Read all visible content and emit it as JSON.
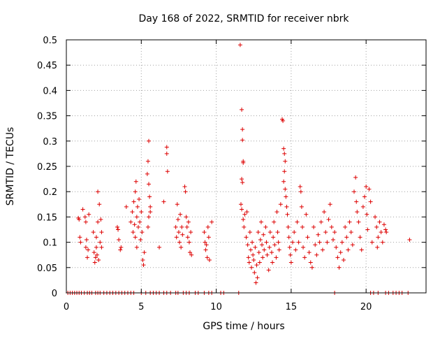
{
  "chart_data": {
    "type": "scatter",
    "title": "Day 168 of 2022, SRMTID for receiver nbrk",
    "xlabel": "GPS time / hours",
    "ylabel": "SRMTID / TECUs",
    "xlim": [
      0,
      24
    ],
    "ylim": [
      0,
      0.5
    ],
    "grid": true,
    "marker": "+",
    "color": "#dd0000",
    "xticks": [
      {
        "value": 0,
        "label": "0"
      },
      {
        "value": 5,
        "label": "5"
      },
      {
        "value": 10,
        "label": "10"
      },
      {
        "value": 15,
        "label": "15"
      },
      {
        "value": 20,
        "label": "20"
      }
    ],
    "yticks": [
      {
        "value": 0,
        "label": "0"
      },
      {
        "value": 0.05,
        "label": "0.05"
      },
      {
        "value": 0.1,
        "label": "0.1"
      },
      {
        "value": 0.15,
        "label": "0.15"
      },
      {
        "value": 0.2,
        "label": "0.2"
      },
      {
        "value": 0.25,
        "label": "0.25"
      },
      {
        "value": 0.3,
        "label": "0.3"
      },
      {
        "value": 0.35,
        "label": "0.35"
      },
      {
        "value": 0.4,
        "label": "0.4"
      },
      {
        "value": 0.45,
        "label": "0.45"
      },
      {
        "value": 0.5,
        "label": "0.5"
      }
    ],
    "points": [
      {
        "x": 0.8,
        "y": 0.148
      },
      {
        "x": 0.85,
        "y": 0.145
      },
      {
        "x": 0.9,
        "y": 0.11
      },
      {
        "x": 0.95,
        "y": 0.1
      },
      {
        "x": 1.1,
        "y": 0.165
      },
      {
        "x": 1.25,
        "y": 0.15
      },
      {
        "x": 1.3,
        "y": 0.14
      },
      {
        "x": 1.3,
        "y": 0.09
      },
      {
        "x": 1.35,
        "y": 0.105
      },
      {
        "x": 1.4,
        "y": 0.07
      },
      {
        "x": 1.45,
        "y": 0.085
      },
      {
        "x": 1.5,
        "y": 0.155
      },
      {
        "x": 1.8,
        "y": 0.12
      },
      {
        "x": 1.85,
        "y": 0.08
      },
      {
        "x": 1.9,
        "y": 0.06
      },
      {
        "x": 1.95,
        "y": 0.07
      },
      {
        "x": 2.0,
        "y": 0.09
      },
      {
        "x": 2.0,
        "y": 0.11
      },
      {
        "x": 2.05,
        "y": 0.075
      },
      {
        "x": 2.1,
        "y": 0.2
      },
      {
        "x": 2.1,
        "y": 0.14
      },
      {
        "x": 2.15,
        "y": 0.065
      },
      {
        "x": 2.2,
        "y": 0.175
      },
      {
        "x": 2.25,
        "y": 0.1
      },
      {
        "x": 2.3,
        "y": 0.145
      },
      {
        "x": 2.35,
        "y": 0.12
      },
      {
        "x": 2.35,
        "y": 0.09
      },
      {
        "x": 3.4,
        "y": 0.13
      },
      {
        "x": 3.45,
        "y": 0.125
      },
      {
        "x": 3.5,
        "y": 0.105
      },
      {
        "x": 3.6,
        "y": 0.085
      },
      {
        "x": 3.65,
        "y": 0.09
      },
      {
        "x": 4.0,
        "y": 0.17
      },
      {
        "x": 4.3,
        "y": 0.14
      },
      {
        "x": 4.4,
        "y": 0.16
      },
      {
        "x": 4.45,
        "y": 0.12
      },
      {
        "x": 4.5,
        "y": 0.18
      },
      {
        "x": 4.55,
        "y": 0.135
      },
      {
        "x": 4.6,
        "y": 0.2
      },
      {
        "x": 4.6,
        "y": 0.11
      },
      {
        "x": 4.65,
        "y": 0.22
      },
      {
        "x": 4.7,
        "y": 0.15
      },
      {
        "x": 4.7,
        "y": 0.09
      },
      {
        "x": 4.75,
        "y": 0.17
      },
      {
        "x": 4.8,
        "y": 0.13
      },
      {
        "x": 4.85,
        "y": 0.185
      },
      {
        "x": 4.9,
        "y": 0.14
      },
      {
        "x": 4.95,
        "y": 0.105
      },
      {
        "x": 5.0,
        "y": 0.16
      },
      {
        "x": 5.05,
        "y": 0.12
      },
      {
        "x": 5.1,
        "y": 0.065
      },
      {
        "x": 5.15,
        "y": 0.055
      },
      {
        "x": 5.2,
        "y": 0.08
      },
      {
        "x": 5.5,
        "y": 0.3
      },
      {
        "x": 5.45,
        "y": 0.26
      },
      {
        "x": 5.4,
        "y": 0.235
      },
      {
        "x": 5.5,
        "y": 0.215
      },
      {
        "x": 5.55,
        "y": 0.19
      },
      {
        "x": 5.6,
        "y": 0.17
      },
      {
        "x": 5.5,
        "y": 0.15
      },
      {
        "x": 5.45,
        "y": 0.13
      },
      {
        "x": 5.6,
        "y": 0.16
      },
      {
        "x": 6.2,
        "y": 0.09
      },
      {
        "x": 6.5,
        "y": 0.18
      },
      {
        "x": 6.7,
        "y": 0.288
      },
      {
        "x": 6.7,
        "y": 0.275
      },
      {
        "x": 6.75,
        "y": 0.24
      },
      {
        "x": 7.3,
        "y": 0.13
      },
      {
        "x": 7.35,
        "y": 0.11
      },
      {
        "x": 7.4,
        "y": 0.175
      },
      {
        "x": 7.45,
        "y": 0.145
      },
      {
        "x": 7.5,
        "y": 0.12
      },
      {
        "x": 7.55,
        "y": 0.1
      },
      {
        "x": 7.6,
        "y": 0.155
      },
      {
        "x": 7.65,
        "y": 0.09
      },
      {
        "x": 7.7,
        "y": 0.13
      },
      {
        "x": 7.75,
        "y": 0.115
      },
      {
        "x": 7.9,
        "y": 0.21
      },
      {
        "x": 7.95,
        "y": 0.2
      },
      {
        "x": 8.0,
        "y": 0.15
      },
      {
        "x": 8.05,
        "y": 0.13
      },
      {
        "x": 8.1,
        "y": 0.11
      },
      {
        "x": 8.15,
        "y": 0.14
      },
      {
        "x": 8.2,
        "y": 0.1
      },
      {
        "x": 8.25,
        "y": 0.08
      },
      {
        "x": 8.3,
        "y": 0.12
      },
      {
        "x": 8.35,
        "y": 0.075
      },
      {
        "x": 9.2,
        "y": 0.12
      },
      {
        "x": 9.25,
        "y": 0.1
      },
      {
        "x": 9.3,
        "y": 0.085
      },
      {
        "x": 9.35,
        "y": 0.095
      },
      {
        "x": 9.4,
        "y": 0.07
      },
      {
        "x": 9.45,
        "y": 0.13
      },
      {
        "x": 9.5,
        "y": 0.11
      },
      {
        "x": 9.55,
        "y": 0.065
      },
      {
        "x": 9.7,
        "y": 0.14
      },
      {
        "x": 11.6,
        "y": 0.49
      },
      {
        "x": 11.7,
        "y": 0.362
      },
      {
        "x": 11.75,
        "y": 0.323
      },
      {
        "x": 11.75,
        "y": 0.302
      },
      {
        "x": 11.8,
        "y": 0.26
      },
      {
        "x": 11.8,
        "y": 0.257
      },
      {
        "x": 11.7,
        "y": 0.225
      },
      {
        "x": 11.75,
        "y": 0.218
      },
      {
        "x": 11.65,
        "y": 0.175
      },
      {
        "x": 11.7,
        "y": 0.165
      },
      {
        "x": 11.8,
        "y": 0.145
      },
      {
        "x": 11.85,
        "y": 0.13
      },
      {
        "x": 11.9,
        "y": 0.155
      },
      {
        "x": 12.0,
        "y": 0.11
      },
      {
        "x": 12.05,
        "y": 0.16
      },
      {
        "x": 12.1,
        "y": 0.095
      },
      {
        "x": 12.15,
        "y": 0.07
      },
      {
        "x": 12.2,
        "y": 0.06
      },
      {
        "x": 12.25,
        "y": 0.12
      },
      {
        "x": 12.3,
        "y": 0.085
      },
      {
        "x": 12.35,
        "y": 0.05
      },
      {
        "x": 12.4,
        "y": 0.1
      },
      {
        "x": 12.45,
        "y": 0.075
      },
      {
        "x": 12.5,
        "y": 0.065
      },
      {
        "x": 12.55,
        "y": 0.04
      },
      {
        "x": 12.6,
        "y": 0.09
      },
      {
        "x": 12.65,
        "y": 0.02
      },
      {
        "x": 12.7,
        "y": 0.055
      },
      {
        "x": 12.75,
        "y": 0.03
      },
      {
        "x": 12.8,
        "y": 0.12
      },
      {
        "x": 12.85,
        "y": 0.08
      },
      {
        "x": 12.9,
        "y": 0.06
      },
      {
        "x": 12.95,
        "y": 0.105
      },
      {
        "x": 13.0,
        "y": 0.14
      },
      {
        "x": 13.05,
        "y": 0.095
      },
      {
        "x": 13.1,
        "y": 0.07
      },
      {
        "x": 13.15,
        "y": 0.115
      },
      {
        "x": 13.2,
        "y": 0.085
      },
      {
        "x": 13.3,
        "y": 0.13
      },
      {
        "x": 13.35,
        "y": 0.1
      },
      {
        "x": 13.4,
        "y": 0.075
      },
      {
        "x": 13.5,
        "y": 0.045
      },
      {
        "x": 13.55,
        "y": 0.09
      },
      {
        "x": 13.6,
        "y": 0.12
      },
      {
        "x": 13.7,
        "y": 0.08
      },
      {
        "x": 13.75,
        "y": 0.06
      },
      {
        "x": 13.8,
        "y": 0.11
      },
      {
        "x": 13.85,
        "y": 0.14
      },
      {
        "x": 13.9,
        "y": 0.095
      },
      {
        "x": 14.0,
        "y": 0.07
      },
      {
        "x": 14.05,
        "y": 0.16
      },
      {
        "x": 14.1,
        "y": 0.12
      },
      {
        "x": 14.15,
        "y": 0.1
      },
      {
        "x": 14.2,
        "y": 0.085
      },
      {
        "x": 14.3,
        "y": 0.175
      },
      {
        "x": 14.4,
        "y": 0.343
      },
      {
        "x": 14.45,
        "y": 0.34
      },
      {
        "x": 14.5,
        "y": 0.285
      },
      {
        "x": 14.55,
        "y": 0.275
      },
      {
        "x": 14.6,
        "y": 0.26
      },
      {
        "x": 14.55,
        "y": 0.24
      },
      {
        "x": 14.5,
        "y": 0.22
      },
      {
        "x": 14.6,
        "y": 0.205
      },
      {
        "x": 14.65,
        "y": 0.19
      },
      {
        "x": 14.7,
        "y": 0.17
      },
      {
        "x": 14.75,
        "y": 0.155
      },
      {
        "x": 14.8,
        "y": 0.13
      },
      {
        "x": 14.85,
        "y": 0.11
      },
      {
        "x": 14.9,
        "y": 0.09
      },
      {
        "x": 14.95,
        "y": 0.075
      },
      {
        "x": 15.0,
        "y": 0.06
      },
      {
        "x": 15.1,
        "y": 0.1
      },
      {
        "x": 15.2,
        "y": 0.12
      },
      {
        "x": 15.3,
        "y": 0.085
      },
      {
        "x": 15.4,
        "y": 0.14
      },
      {
        "x": 15.5,
        "y": 0.1
      },
      {
        "x": 15.6,
        "y": 0.21
      },
      {
        "x": 15.65,
        "y": 0.2
      },
      {
        "x": 15.7,
        "y": 0.17
      },
      {
        "x": 15.75,
        "y": 0.13
      },
      {
        "x": 15.8,
        "y": 0.09
      },
      {
        "x": 15.9,
        "y": 0.07
      },
      {
        "x": 16.0,
        "y": 0.155
      },
      {
        "x": 16.1,
        "y": 0.11
      },
      {
        "x": 16.2,
        "y": 0.08
      },
      {
        "x": 16.3,
        "y": 0.06
      },
      {
        "x": 16.4,
        "y": 0.05
      },
      {
        "x": 16.5,
        "y": 0.13
      },
      {
        "x": 16.6,
        "y": 0.095
      },
      {
        "x": 16.7,
        "y": 0.075
      },
      {
        "x": 16.8,
        "y": 0.115
      },
      {
        "x": 16.9,
        "y": 0.1
      },
      {
        "x": 17.0,
        "y": 0.14
      },
      {
        "x": 17.1,
        "y": 0.085
      },
      {
        "x": 17.2,
        "y": 0.16
      },
      {
        "x": 17.3,
        "y": 0.12
      },
      {
        "x": 17.4,
        "y": 0.1
      },
      {
        "x": 17.5,
        "y": 0.145
      },
      {
        "x": 17.6,
        "y": 0.175
      },
      {
        "x": 17.7,
        "y": 0.13
      },
      {
        "x": 17.8,
        "y": 0.105
      },
      {
        "x": 17.9,
        "y": 0.12
      },
      {
        "x": 18.0,
        "y": 0.09
      },
      {
        "x": 18.1,
        "y": 0.07
      },
      {
        "x": 18.2,
        "y": 0.05
      },
      {
        "x": 18.3,
        "y": 0.08
      },
      {
        "x": 18.4,
        "y": 0.1
      },
      {
        "x": 18.5,
        "y": 0.065
      },
      {
        "x": 18.6,
        "y": 0.13
      },
      {
        "x": 18.7,
        "y": 0.11
      },
      {
        "x": 18.8,
        "y": 0.085
      },
      {
        "x": 18.9,
        "y": 0.14
      },
      {
        "x": 19.0,
        "y": 0.12
      },
      {
        "x": 19.1,
        "y": 0.095
      },
      {
        "x": 19.2,
        "y": 0.2
      },
      {
        "x": 19.3,
        "y": 0.228
      },
      {
        "x": 19.35,
        "y": 0.18
      },
      {
        "x": 19.4,
        "y": 0.16
      },
      {
        "x": 19.5,
        "y": 0.14
      },
      {
        "x": 19.6,
        "y": 0.11
      },
      {
        "x": 19.7,
        "y": 0.085
      },
      {
        "x": 19.8,
        "y": 0.17
      },
      {
        "x": 19.9,
        "y": 0.19
      },
      {
        "x": 20.0,
        "y": 0.21
      },
      {
        "x": 20.05,
        "y": 0.155
      },
      {
        "x": 20.1,
        "y": 0.125
      },
      {
        "x": 20.2,
        "y": 0.205
      },
      {
        "x": 20.3,
        "y": 0.18
      },
      {
        "x": 20.4,
        "y": 0.1
      },
      {
        "x": 20.6,
        "y": 0.15
      },
      {
        "x": 20.7,
        "y": 0.13
      },
      {
        "x": 20.75,
        "y": 0.09
      },
      {
        "x": 20.8,
        "y": 0.11
      },
      {
        "x": 20.9,
        "y": 0.14
      },
      {
        "x": 21.0,
        "y": 0.12
      },
      {
        "x": 21.1,
        "y": 0.1
      },
      {
        "x": 21.2,
        "y": 0.135
      },
      {
        "x": 21.3,
        "y": 0.125
      },
      {
        "x": 21.35,
        "y": 0.12
      },
      {
        "x": 22.9,
        "y": 0.105
      }
    ],
    "zero_points_x": [
      0.1,
      0.25,
      0.4,
      0.55,
      0.7,
      0.85,
      1.0,
      1.2,
      1.4,
      1.55,
      1.7,
      1.95,
      2.1,
      2.25,
      2.5,
      2.7,
      2.9,
      3.1,
      3.3,
      3.5,
      3.7,
      3.9,
      4.1,
      4.3,
      4.5,
      5.0,
      5.3,
      5.6,
      5.8,
      6.0,
      6.2,
      6.5,
      6.7,
      6.95,
      7.3,
      7.45,
      7.8,
      8.0,
      8.2,
      8.6,
      8.8,
      9.2,
      9.5,
      9.7,
      10.3,
      10.5,
      11.5,
      17.9,
      20.3,
      20.5,
      20.8,
      21.3,
      21.5,
      21.8,
      22.0,
      22.2,
      22.4,
      22.8
    ]
  }
}
